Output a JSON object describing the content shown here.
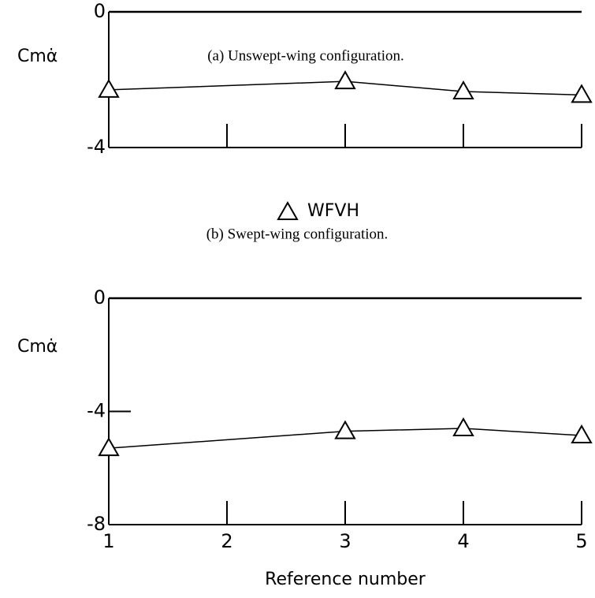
{
  "chart_data": [
    {
      "type": "line",
      "title": "(a) Unswept-wing configuration.",
      "ylabel": "Cmα̇",
      "x": [
        1,
        3,
        4,
        5
      ],
      "series": [
        {
          "name": "WFVH",
          "color": "#000000",
          "marker": "triangle",
          "values": [
            -2.3,
            -2.05,
            -2.35,
            -2.45
          ]
        }
      ],
      "xlim": [
        1,
        5
      ],
      "xticks": [
        1,
        2,
        3,
        4,
        5
      ],
      "ylim": [
        -4,
        0
      ],
      "yticks": [
        0,
        -4
      ]
    },
    {
      "type": "line",
      "title": "(b) Swept-wing configuration.",
      "ylabel": "Cmα̇",
      "xlabel": "Reference number",
      "x": [
        1,
        3,
        4,
        5
      ],
      "series": [
        {
          "name": "WFVH",
          "color": "#000000",
          "marker": "triangle",
          "values": [
            -5.3,
            -4.7,
            -4.6,
            -4.85
          ]
        }
      ],
      "xlim": [
        1,
        5
      ],
      "xticks": [
        1,
        2,
        3,
        4,
        5
      ],
      "ylim": [
        -8,
        0
      ],
      "yticks": [
        0,
        -4,
        -8
      ]
    }
  ]
}
